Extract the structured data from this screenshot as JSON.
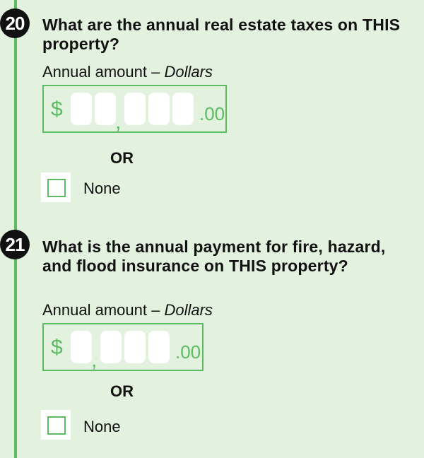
{
  "questions": [
    {
      "number": "20",
      "text": "What are the annual real estate taxes on THIS property?",
      "amount_label": "Annual amount –",
      "amount_unit": "Dollars",
      "currency_symbol": "$",
      "thousands_separator": ",",
      "cents": ".00",
      "or_label": "OR",
      "none_label": "None"
    },
    {
      "number": "21",
      "text": "What is the annual payment for fire, hazard, and flood insurance on THIS property?",
      "amount_label": "Annual amount –",
      "amount_unit": "Dollars",
      "currency_symbol": "$",
      "thousands_separator": ",",
      "cents": ".00",
      "or_label": "OR",
      "none_label": "None"
    }
  ],
  "colors": {
    "background": "#e2f2df",
    "accent": "#5dbb63",
    "text": "#111111"
  }
}
